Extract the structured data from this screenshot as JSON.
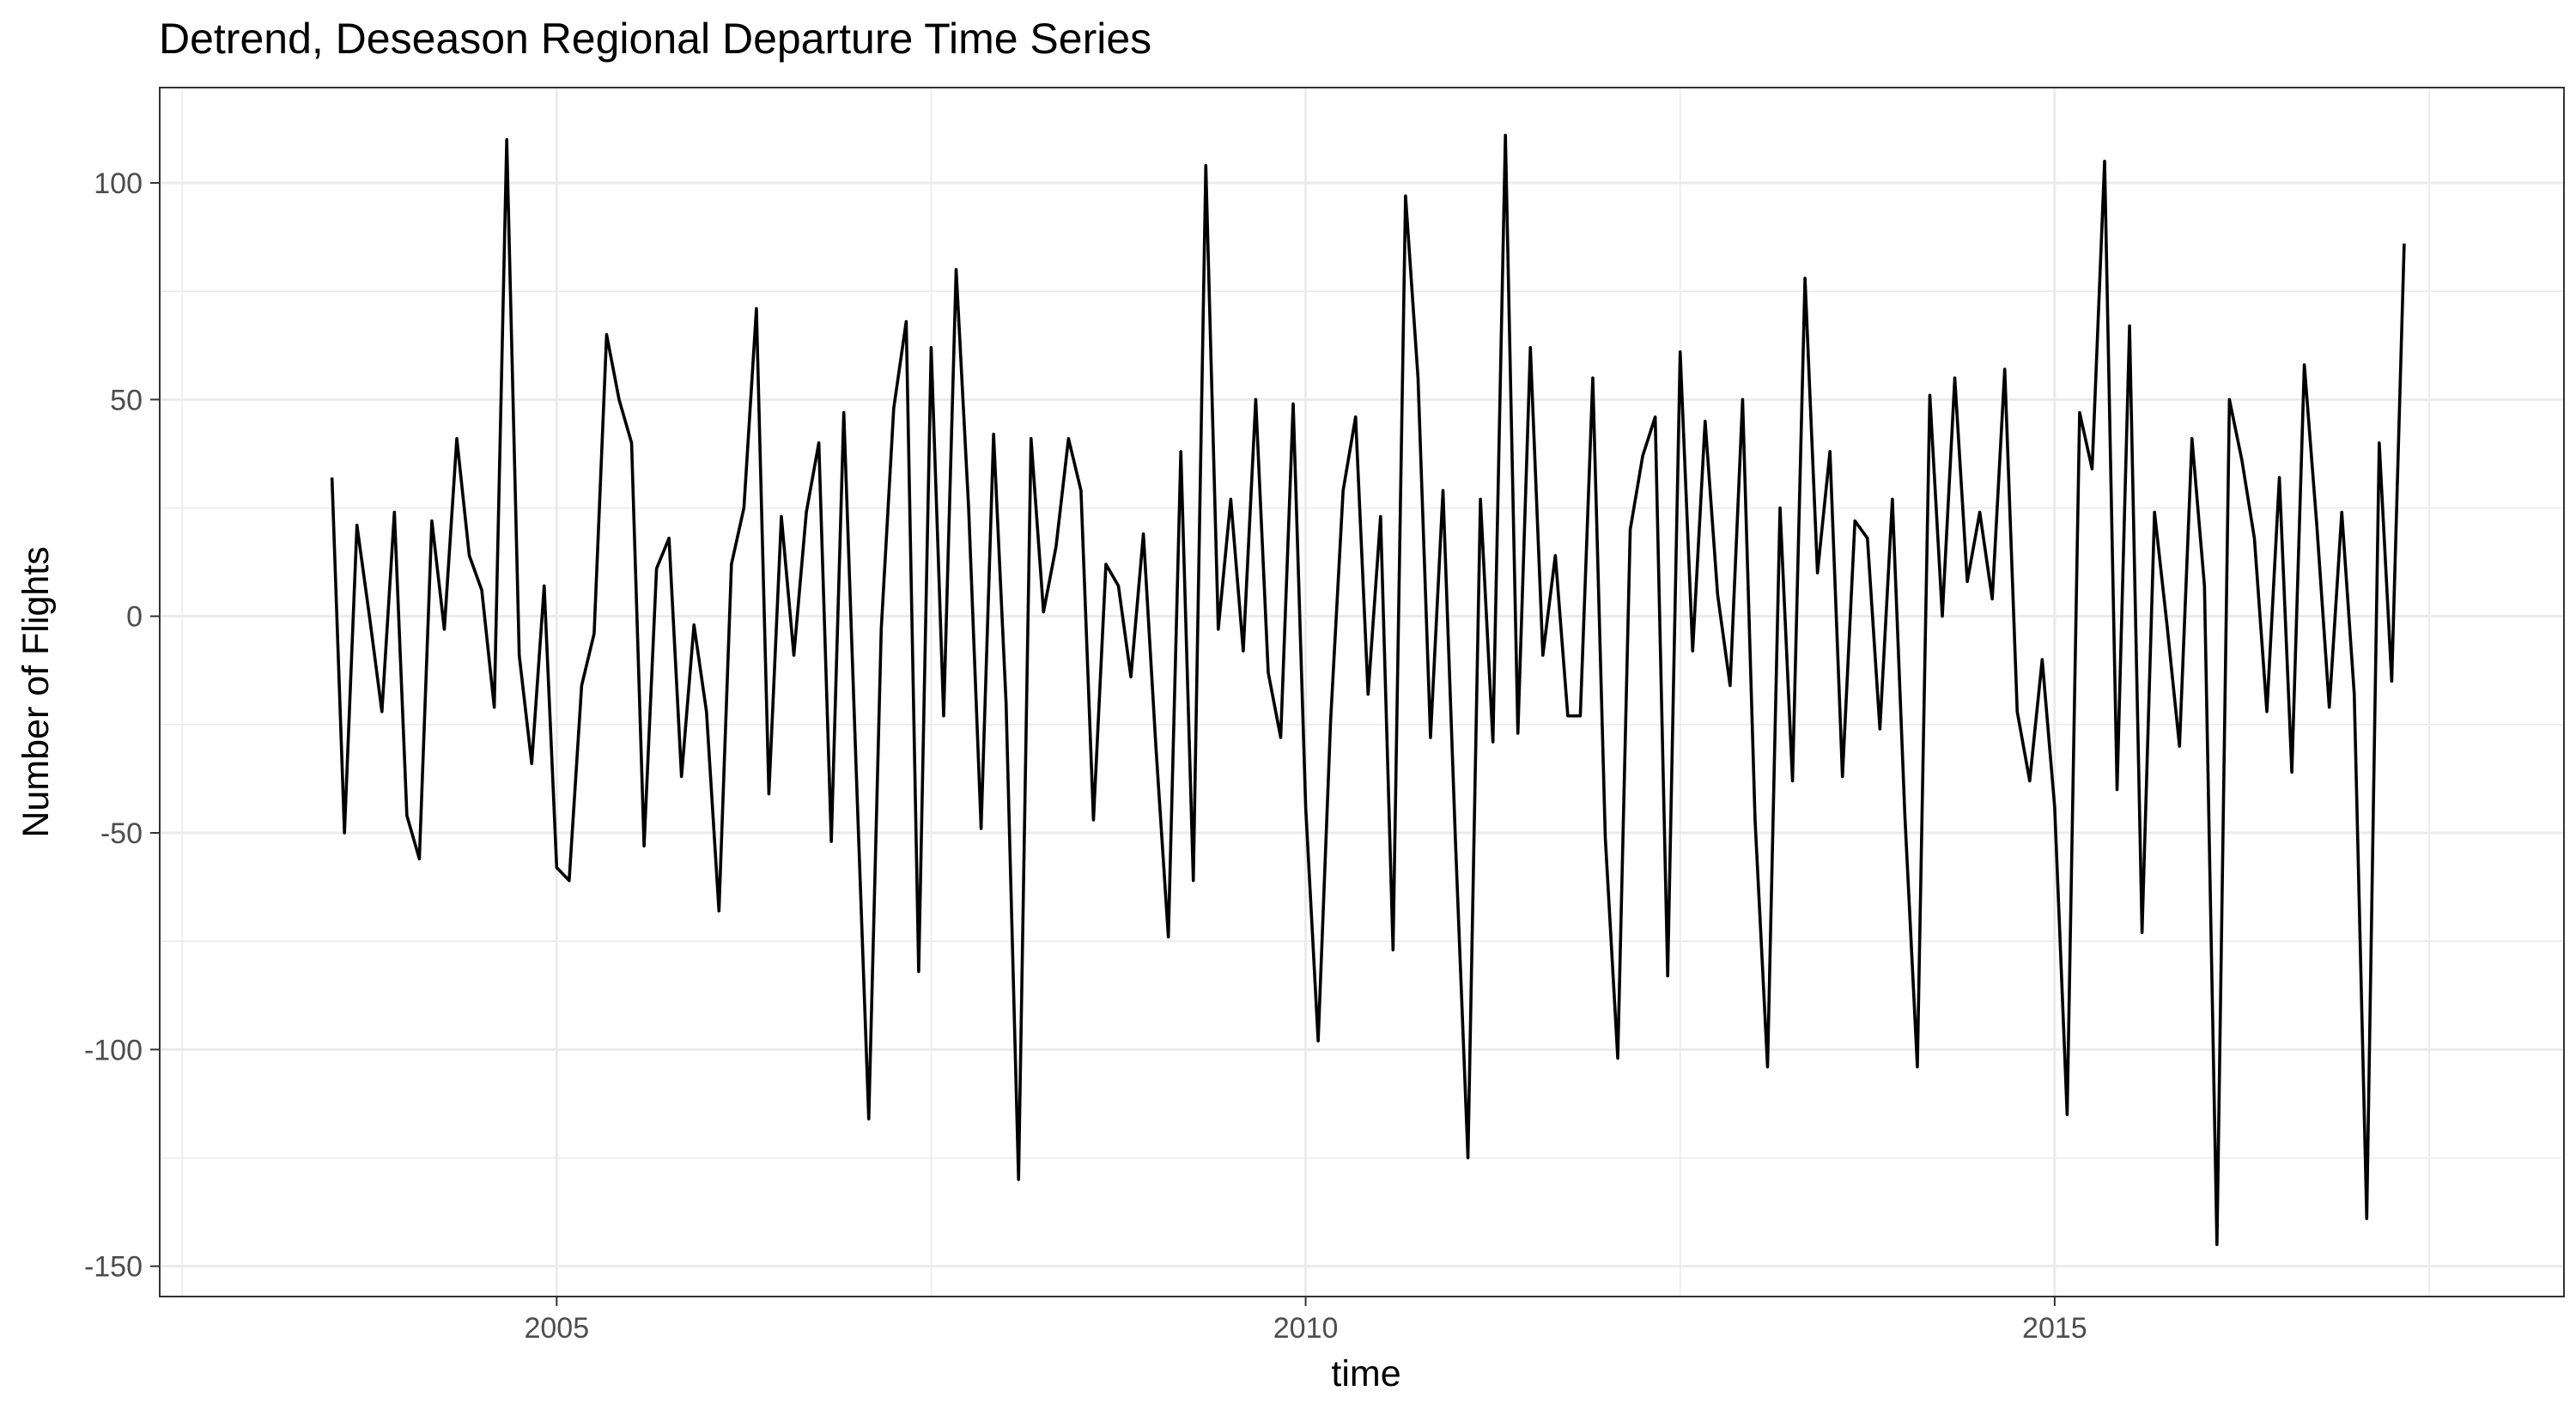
{
  "chart_data": {
    "type": "line",
    "title": "Detrend, Deseason  Regional Departure Time Series",
    "xlabel": "time",
    "ylabel": "Number of Flights",
    "xlim": [
      2002.35,
      2018.4
    ],
    "ylim": [
      -157,
      122
    ],
    "x_ticks": [
      2005,
      2010,
      2015
    ],
    "x_tick_labels": [
      "2005",
      "2010",
      "2015"
    ],
    "x_minor_ticks": [
      2002.5,
      2007.5,
      2012.5,
      2017.5
    ],
    "y_ticks": [
      -150,
      -100,
      -50,
      0,
      50,
      100
    ],
    "y_tick_labels": [
      "-150",
      "-100",
      "-50",
      "0",
      "50",
      "100"
    ],
    "y_minor_ticks": [
      -125,
      -75,
      -25,
      25,
      75
    ],
    "grid": true,
    "series": [
      {
        "start": 2003.5,
        "frequency": 12,
        "values": [
          32,
          -50,
          21,
          0,
          -22,
          24,
          -46,
          -56,
          22,
          -3,
          41,
          14,
          6,
          -21,
          110,
          -9,
          -34,
          7,
          -58,
          -61,
          -16,
          -4,
          65,
          50,
          40,
          -53,
          11,
          18,
          -37,
          -2,
          -22,
          -68,
          12,
          25,
          71,
          -41,
          23,
          -9,
          24,
          40,
          -52,
          47,
          -36,
          -116,
          -3,
          48,
          68,
          -82,
          62,
          -23,
          80,
          25,
          -49,
          42,
          -20,
          -130,
          41,
          1,
          16,
          41,
          29,
          -47,
          12,
          7,
          -14,
          19,
          -30,
          -74,
          38,
          -61,
          104,
          -3,
          27,
          -8,
          50,
          -13,
          -28,
          49,
          -44,
          -98,
          -24,
          29,
          46,
          -18,
          23,
          -77,
          97,
          55,
          -28,
          29,
          -52,
          -125,
          27,
          -29,
          111,
          -27,
          62,
          -9,
          14,
          -23,
          -23,
          55,
          -51,
          -102,
          20,
          37,
          46,
          -83,
          61,
          -8,
          45,
          5,
          -16,
          50,
          -47,
          -104,
          25,
          -38,
          78,
          10,
          38,
          -37,
          22,
          18,
          -26,
          27,
          -46,
          -104,
          51,
          0,
          55,
          8,
          24,
          4,
          57,
          -22,
          -38,
          -10,
          -44,
          -115,
          47,
          34,
          105,
          -40,
          67,
          -73,
          24,
          -2,
          -30,
          41,
          7,
          -145,
          50,
          36,
          18,
          -22,
          32,
          -36,
          58,
          21,
          -21,
          24,
          -18,
          -139,
          40,
          -15,
          86
        ]
      }
    ]
  }
}
